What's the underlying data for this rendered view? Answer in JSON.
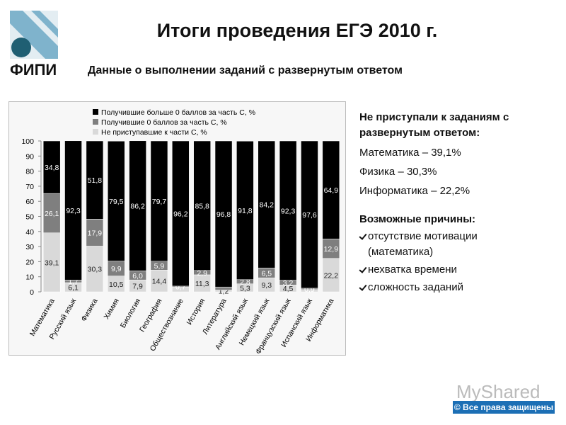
{
  "header": {
    "logo_text": "ФИПИ",
    "title": "Итоги проведения ЕГЭ 2010 г.",
    "subtitle": "Данные о выполнении заданий с развернутым ответом"
  },
  "chart_data": {
    "type": "stacked_bar",
    "categories": [
      "Математика",
      "Русский язык",
      "Физика",
      "Химия",
      "Биология",
      "География",
      "Обществознание",
      "История",
      "Литература",
      "Английский язык",
      "Немецкий язык",
      "Французский язык",
      "Испанский язык",
      "Информатика"
    ],
    "series": [
      {
        "name": "Не приступавшие к части С, %",
        "color": "#d9d9d9",
        "label_color": "#222222",
        "values": [
          39.1,
          6.1,
          30.3,
          10.5,
          7.9,
          14.4,
          3.1,
          11.3,
          1.2,
          5.3,
          9.3,
          4.5,
          1.5,
          22.2
        ],
        "value_labels": [
          "39,1",
          "6,1",
          "30,3",
          "10,5",
          "7,9",
          "14,4",
          null,
          "11,3",
          "1,2",
          "5,3",
          "9,3",
          "4,5",
          null,
          "22,2"
        ]
      },
      {
        "name": "Получившие 0 баллов за часть С, %",
        "color": "#7f7f7f",
        "label_color": "#ffffff",
        "values": [
          26.1,
          1.7,
          17.9,
          9.9,
          6.0,
          5.9,
          0.7,
          2.9,
          2.0,
          2.8,
          6.5,
          3.2,
          0.9,
          12.9
        ],
        "value_labels": [
          "26,1",
          "1,7",
          "17,9",
          "9,9",
          "6,0",
          "5,9",
          "0,7",
          "2,9",
          null,
          "2,8",
          "6,5",
          "3,2",
          "0,9",
          "12,9"
        ]
      },
      {
        "name": "Получившие больше 0 баллов за часть С, %",
        "color": "#000000",
        "label_color": "#ffffff",
        "values": [
          34.8,
          92.3,
          51.8,
          79.5,
          86.2,
          79.7,
          96.2,
          85.8,
          96.8,
          91.8,
          84.2,
          92.3,
          97.6,
          64.9
        ],
        "value_labels": [
          "34,8",
          "92,3",
          "51,8",
          "79,5",
          "86,2",
          "79,7",
          "96,2",
          "85,8",
          "96,8",
          "91,8",
          "84,2",
          "92,3",
          "97,6",
          "64,9"
        ]
      }
    ],
    "ylim": [
      0,
      100
    ],
    "yticks": [
      0,
      10,
      20,
      30,
      40,
      50,
      60,
      70,
      80,
      90,
      100
    ],
    "legend": "top"
  },
  "side_panel": {
    "heading": "Не приступали к заданиям с развернутым ответом:",
    "items": [
      "Математика – 39,1%",
      "Физика – 30,3%",
      "Информатика – 22,2%"
    ],
    "reasons_heading": "Возможные причины:",
    "reasons": [
      "отсутствие мотивации (математика)",
      "нехватка времени",
      "сложность заданий"
    ]
  },
  "watermark": {
    "brand": "MyShared",
    "copyright": "© Все права защищены"
  }
}
